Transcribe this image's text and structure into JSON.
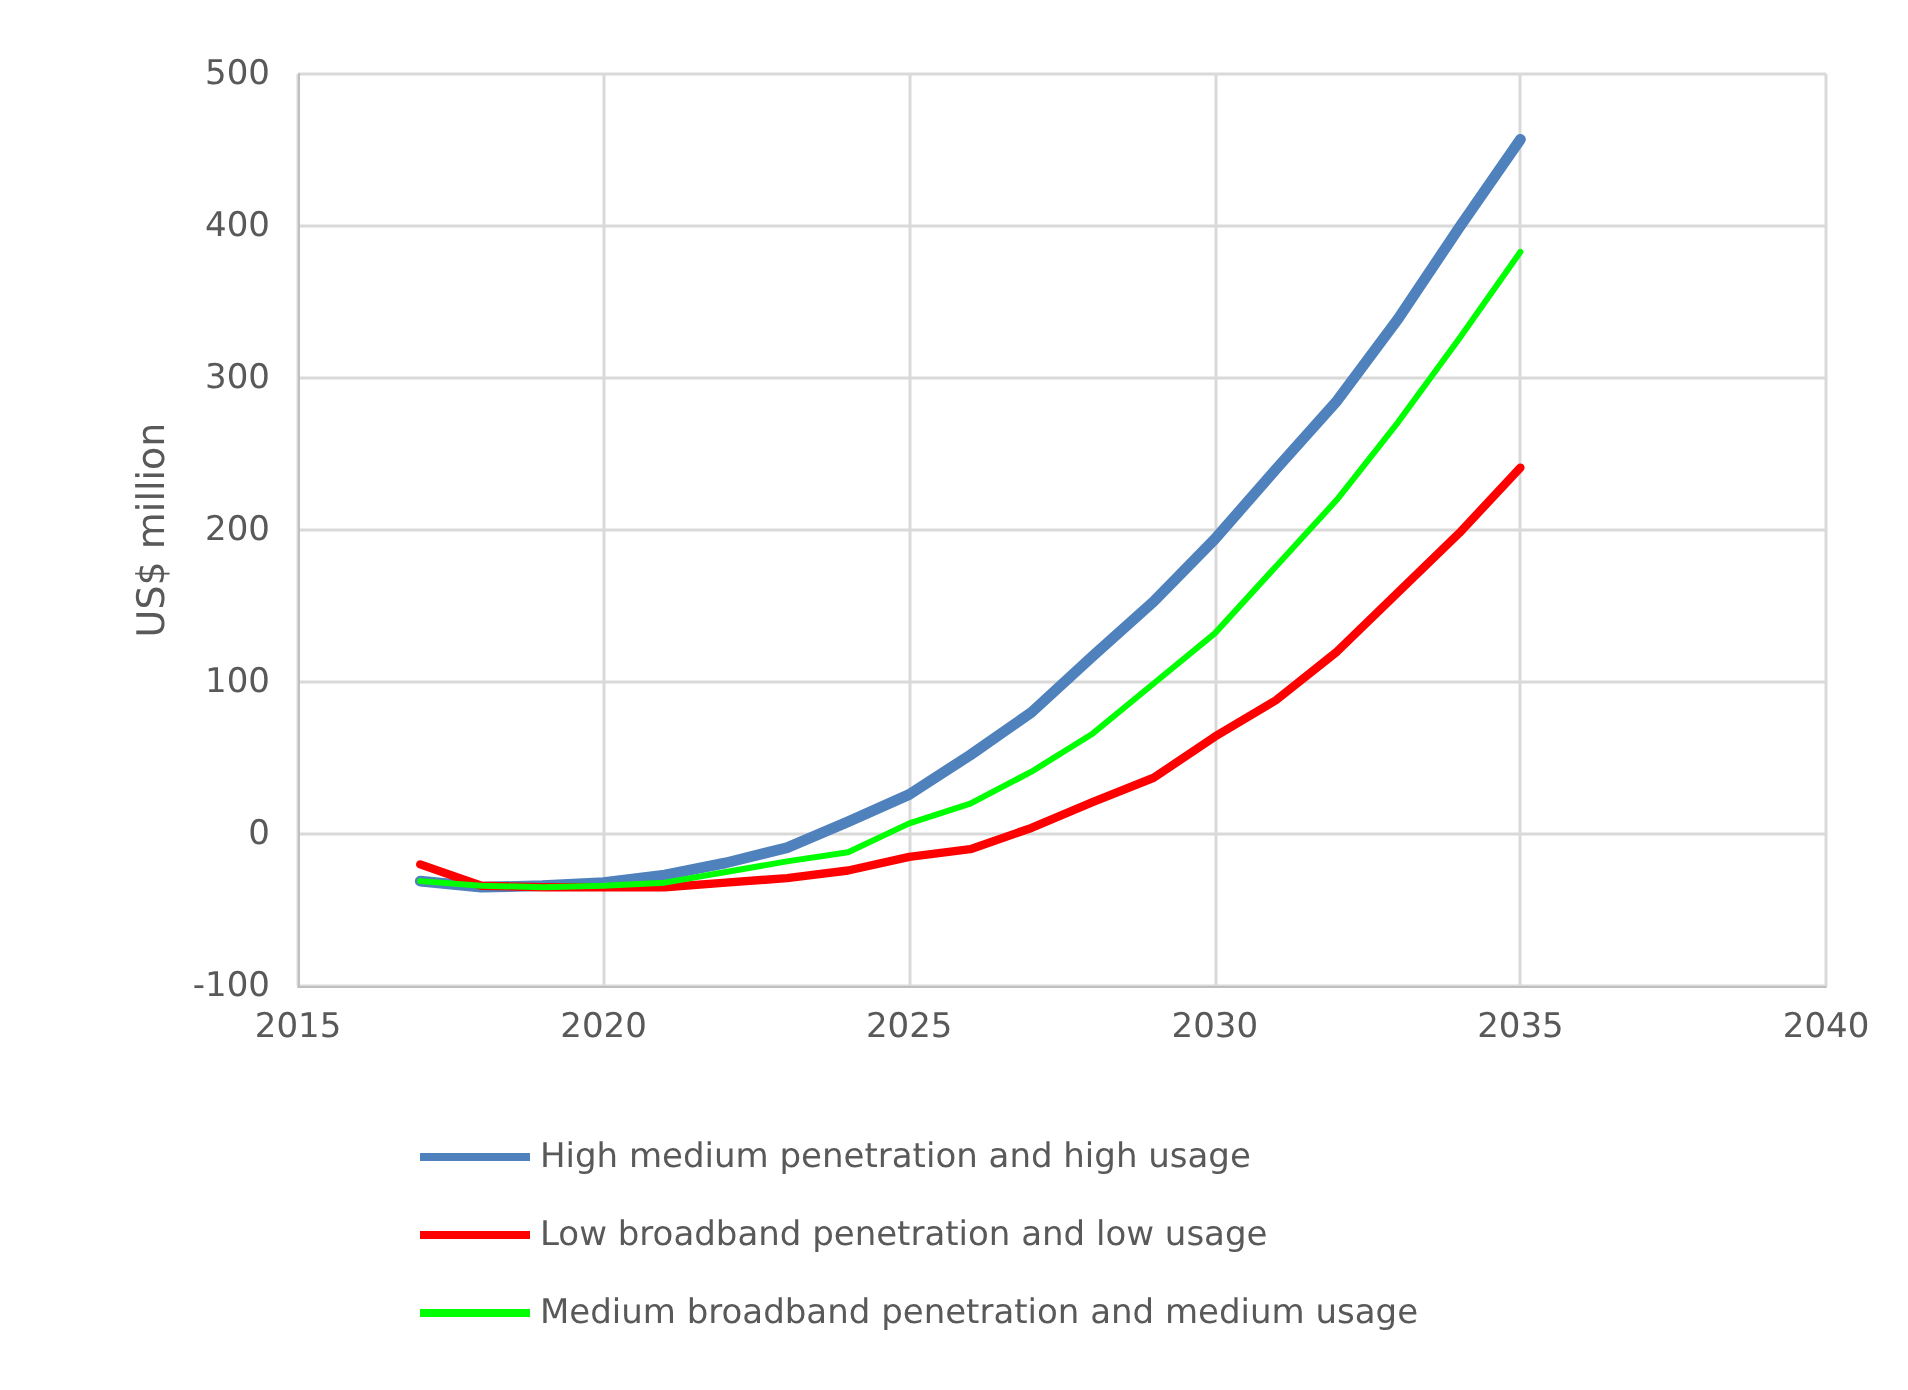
{
  "chart_data": {
    "type": "line",
    "ylabel": "US$ million",
    "x": [
      2017,
      2018,
      2019,
      2020,
      2021,
      2022,
      2023,
      2024,
      2025,
      2026,
      2027,
      2028,
      2029,
      2030,
      2031,
      2032,
      2033,
      2034,
      2035
    ],
    "series": [
      {
        "name": "High medium penetration and high usage",
        "color": "#4f81bd",
        "values": [
          -31,
          -35,
          -34,
          -32,
          -27,
          -19,
          -9,
          8,
          26,
          52,
          80,
          117,
          153,
          194,
          240,
          285,
          339,
          399,
          457
        ]
      },
      {
        "name": "Low broadband penetration and low usage",
        "color": "#ff0000",
        "values": [
          -20,
          -34,
          -35,
          -35,
          -35,
          -32,
          -29,
          -24,
          -15,
          -10,
          4,
          21,
          37,
          64,
          88,
          120,
          159,
          198,
          241
        ]
      },
      {
        "name": "Medium broadband penetration and medium usage",
        "color": "#00ff00",
        "values": [
          -31,
          -34,
          -35,
          -34,
          -32,
          -25,
          -18,
          -12,
          7,
          20,
          41,
          66,
          99,
          132,
          176,
          220,
          271,
          326,
          383
        ]
      }
    ],
    "xlim": [
      2015,
      2040
    ],
    "xticks": [
      2015,
      2020,
      2025,
      2030,
      2035,
      2040
    ],
    "ylim": [
      -100,
      500
    ],
    "yticks": [
      -100,
      0,
      100,
      200,
      300,
      400,
      500
    ],
    "grid": true,
    "legend": "bottom",
    "marker": "none",
    "line_style": "solid"
  }
}
